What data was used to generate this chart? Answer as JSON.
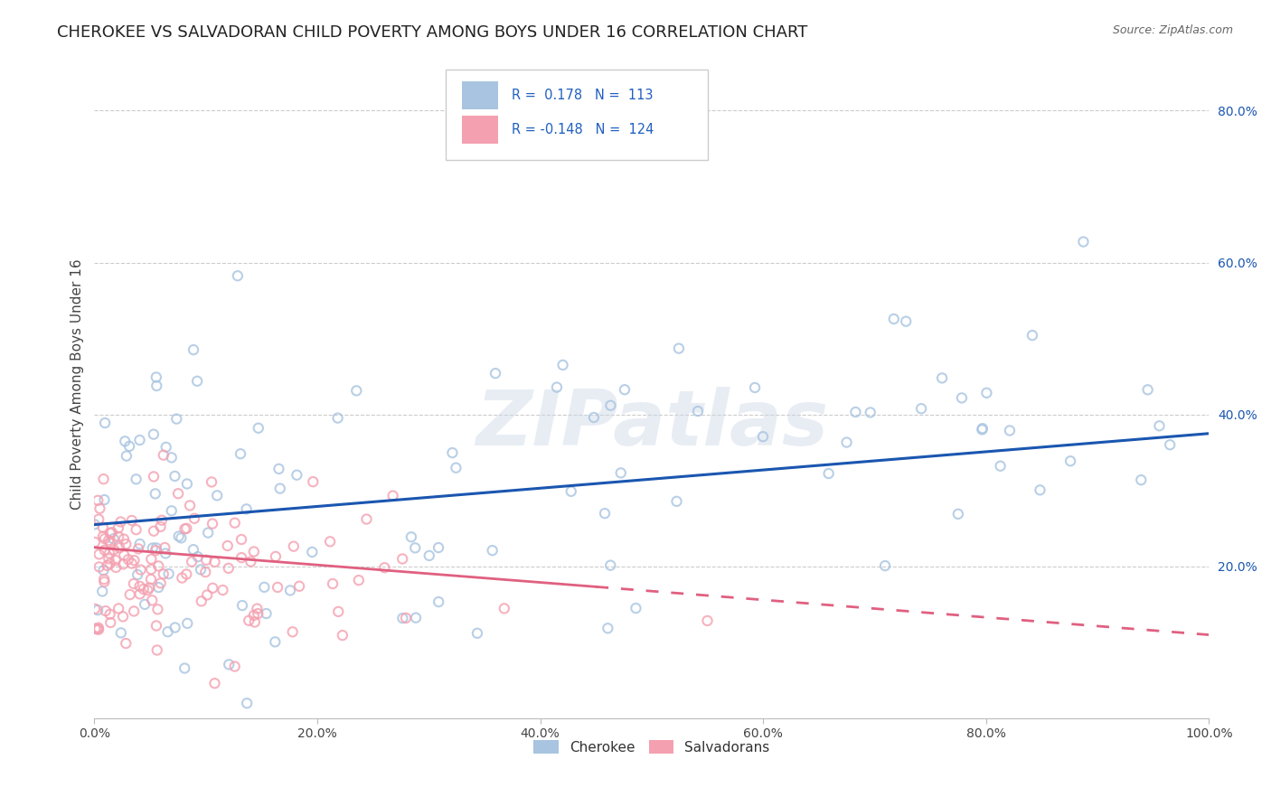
{
  "title": "CHEROKEE VS SALVADORAN CHILD POVERTY AMONG BOYS UNDER 16 CORRELATION CHART",
  "source": "Source: ZipAtlas.com",
  "ylabel": "Child Poverty Among Boys Under 16",
  "watermark": "ZIPatlas",
  "cherokee_R": 0.178,
  "cherokee_N": 113,
  "salvadoran_R": -0.148,
  "salvadoran_N": 124,
  "xlim": [
    0,
    1.0
  ],
  "ylim": [
    0,
    0.88
  ],
  "xticks": [
    0.0,
    0.2,
    0.4,
    0.6,
    0.8,
    1.0
  ],
  "yticks": [
    0.2,
    0.4,
    0.6,
    0.8
  ],
  "xtick_labels": [
    "0.0%",
    "20.0%",
    "40.0%",
    "60.0%",
    "80.0%",
    "100.0%"
  ],
  "ytick_labels": [
    "20.0%",
    "40.0%",
    "60.0%",
    "80.0%"
  ],
  "cherokee_color": "#a8c4e0",
  "salvadoran_color": "#f4a0b0",
  "legend_label_cherokee": "Cherokee",
  "legend_label_salvadoran": "Salvadorans",
  "trendline_cherokee_color": "#1a56b0",
  "trendline_salvadoran_color": "#e06080",
  "background_color": "#ffffff",
  "title_fontsize": 13,
  "axis_label_fontsize": 11,
  "tick_fontsize": 10,
  "scatter_alpha": 0.55,
  "scatter_size": 55,
  "legend_text_color": "#2060c0",
  "cherokee_trend_y0": 0.255,
  "cherokee_trend_y1": 0.375,
  "salvadoran_trend_y0": 0.225,
  "salvadoran_trend_y1": 0.11
}
